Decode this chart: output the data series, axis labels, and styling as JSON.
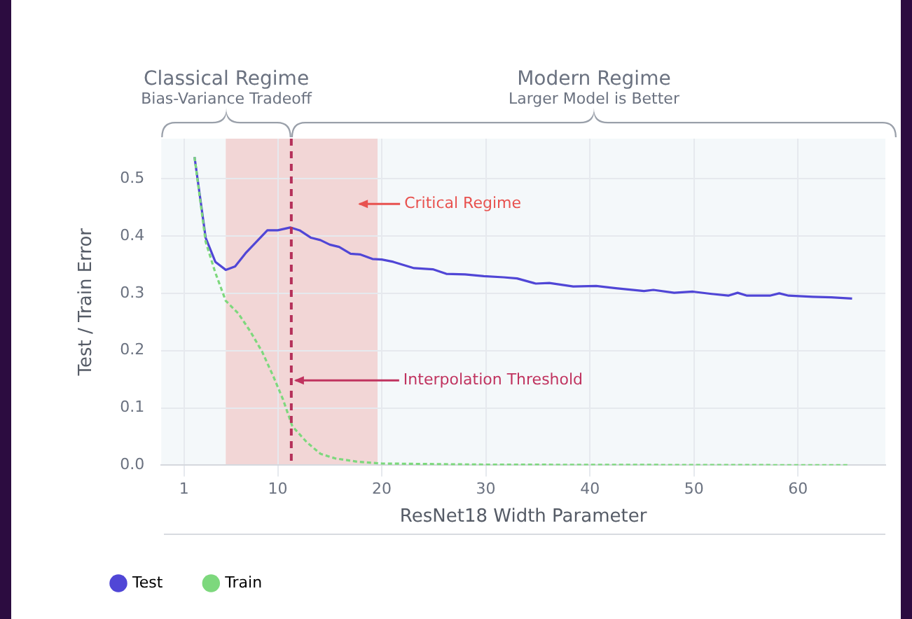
{
  "chart_data": {
    "type": "line",
    "xlabel": "ResNet18 Width Parameter",
    "ylabel": "Test / Train Error",
    "xlim": [
      -1.2,
      68.4
    ],
    "ylim": [
      0,
      0.57
    ],
    "xticks": [
      1,
      10,
      20,
      30,
      40,
      50,
      60
    ],
    "yticks": [
      {
        "value": 0,
        "label": "0.0"
      },
      0.1,
      0.2,
      0.3,
      0.4,
      0.5
    ],
    "grid": true,
    "legend": "bottom",
    "marker": "none",
    "line_style": "solid",
    "series": [
      {
        "name": "Test",
        "color": "#5046d6",
        "x": [
          2,
          3.07,
          4,
          5,
          5.9,
          6.9,
          9,
          10,
          11.2,
          12.1,
          13.2,
          14.1,
          15,
          15.9,
          17,
          17.9,
          19.1,
          20,
          21.1,
          23.1,
          24.9,
          26.2,
          28,
          29.8,
          31.7,
          33,
          34.8,
          36.1,
          38.4,
          40.6,
          42.5,
          45.2,
          46.1,
          48.1,
          49.9,
          51.7,
          53.3,
          54.2,
          55.1,
          57.3,
          58.2,
          59.1,
          61.4,
          63.2,
          65.2
        ],
        "values": [
          0.538,
          0.397,
          0.355,
          0.341,
          0.347,
          0.37,
          0.41,
          0.41,
          0.415,
          0.41,
          0.397,
          0.393,
          0.385,
          0.381,
          0.369,
          0.368,
          0.36,
          0.359,
          0.355,
          0.344,
          0.342,
          0.334,
          0.333,
          0.33,
          0.328,
          0.326,
          0.317,
          0.318,
          0.312,
          0.313,
          0.309,
          0.304,
          0.306,
          0.301,
          0.303,
          0.299,
          0.296,
          0.301,
          0.296,
          0.296,
          0.3,
          0.296,
          0.294,
          0.293,
          0.291
        ]
      },
      {
        "name": "Train",
        "color": "#7dd87d",
        "line_style": "dashed",
        "x": [
          2,
          3.07,
          4,
          5,
          6.2,
          7.35,
          8.5,
          9.6,
          10.5,
          11.4,
          12.8,
          14.1,
          15.5,
          17.7,
          20,
          30,
          65
        ],
        "values": [
          0.538,
          0.39,
          0.336,
          0.287,
          0.265,
          0.234,
          0.198,
          0.154,
          0.115,
          0.068,
          0.04,
          0.02,
          0.012,
          0.006,
          0.003,
          0.001,
          0
        ]
      }
    ],
    "bands": [
      {
        "axis": "x",
        "from": -1.2,
        "to": 5,
        "color": "#f4f8fa"
      },
      {
        "axis": "x",
        "from": 5,
        "to": 19.6,
        "color": "#f2d6d6",
        "label": "Critical Regime"
      },
      {
        "axis": "x",
        "from": 19.6,
        "to": 68.4,
        "color": "#f4f8fa"
      }
    ],
    "ref_lines": [
      {
        "axis": "x",
        "value": 11.3,
        "color": "#b5305a",
        "line_style": "dashed"
      }
    ],
    "annotations": [
      "Classical Regime",
      "Bias-Variance Tradeoff",
      "Modern Regime",
      "Larger Model is Better",
      {
        "text": "Interpolation Threshold",
        "x": 11.3,
        "y": 0.148
      }
    ]
  }
}
